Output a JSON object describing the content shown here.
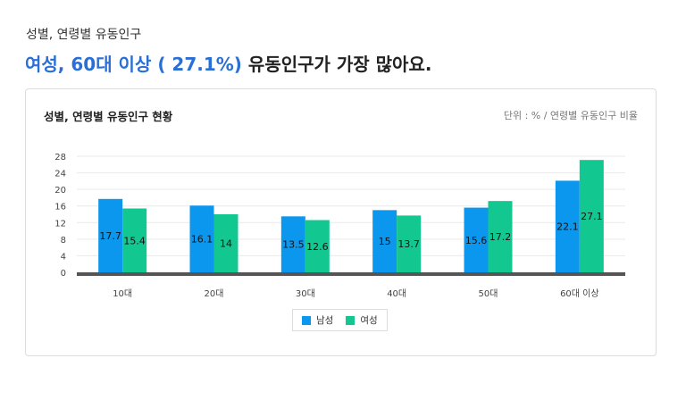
{
  "header": {
    "eyebrow": "성별, 연령별 유동인구",
    "headline_highlight": "여성, 60대 이상 ( 27.1%)",
    "headline_rest": " 유동인구가 가장 많아요."
  },
  "card": {
    "title": "성별, 연령별 유동인구 현황",
    "unit": "단위 : % / 연령별 유동인구 비율"
  },
  "colors": {
    "male": "#0b97ee",
    "female": "#12c790"
  },
  "chart_data": {
    "type": "bar",
    "title": "성별, 연령별 유동인구 현황",
    "categories": [
      "10대",
      "20대",
      "30대",
      "40대",
      "50대",
      "60대 이상"
    ],
    "series": [
      {
        "name": "남성",
        "values": [
          17.7,
          16.1,
          13.5,
          15,
          15.6,
          22.1
        ]
      },
      {
        "name": "여성",
        "values": [
          15.4,
          14,
          12.6,
          13.7,
          17.2,
          27.1
        ]
      }
    ],
    "yticks": [
      "0",
      "4",
      "8",
      "12",
      "16",
      "20",
      "24",
      "28"
    ],
    "ylim": [
      0,
      28
    ],
    "grid": true,
    "legend": "bottom-center"
  }
}
